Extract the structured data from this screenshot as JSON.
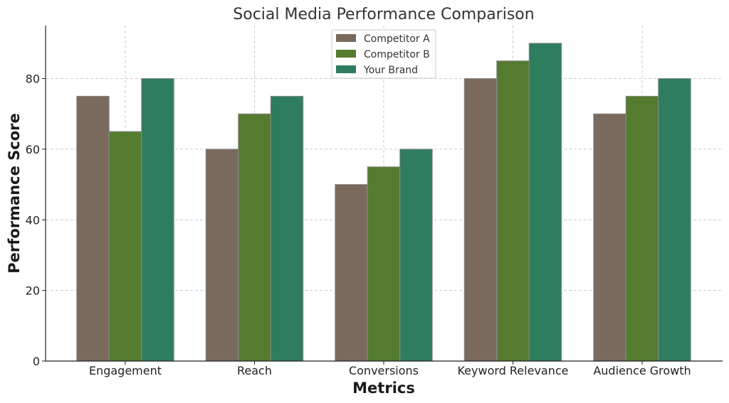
{
  "colors": {
    "competitor_a": "#7a6a5d",
    "competitor_b": "#557b2f",
    "your_brand": "#2e7d5e"
  },
  "chart_data": {
    "type": "bar",
    "title": "Social Media Performance Comparison",
    "xlabel": "Metrics",
    "ylabel": "Performance Score",
    "categories": [
      "Engagement",
      "Reach",
      "Conversions",
      "Keyword Relevance",
      "Audience Growth"
    ],
    "series": [
      {
        "name": "Competitor A",
        "values": [
          75,
          60,
          50,
          80,
          70
        ]
      },
      {
        "name": "Competitor B",
        "values": [
          65,
          70,
          55,
          85,
          75
        ]
      },
      {
        "name": "Your Brand",
        "values": [
          80,
          75,
          60,
          90,
          80
        ]
      }
    ],
    "ylim": [
      0,
      95
    ],
    "yticks": [
      0,
      20,
      40,
      60,
      80
    ],
    "grid": true,
    "legend_position": "top-center"
  }
}
